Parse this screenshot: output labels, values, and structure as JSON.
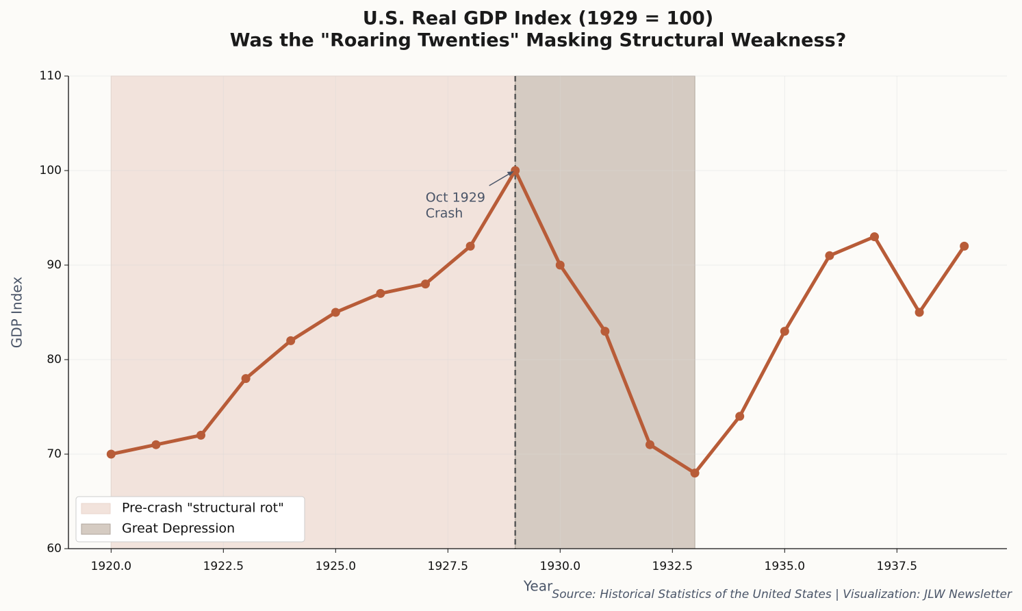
{
  "chart_data": {
    "type": "line",
    "title": "U.S. Real GDP Index (1929 = 100)",
    "subtitle": "Was the \"Roaring Twenties\" Masking Structural Weakness?",
    "x_label": "Year",
    "y_label": "GDP Index",
    "source": "Source: Historical Statistics of the United States | Visualization: JLW Newsletter",
    "x": [
      1920,
      1921,
      1922,
      1923,
      1924,
      1925,
      1926,
      1927,
      1928,
      1929,
      1930,
      1931,
      1932,
      1933,
      1934,
      1935,
      1936,
      1937,
      1938,
      1939
    ],
    "series": [
      {
        "name": "GDP Index",
        "color": "#b85c38",
        "values": [
          70,
          71,
          72,
          78,
          82,
          85,
          87,
          88,
          92,
          100,
          90,
          83,
          71,
          68,
          74,
          83,
          91,
          93,
          85,
          92
        ]
      }
    ],
    "spans": [
      {
        "name": "Pre-crash \"structural rot\"",
        "start": 1920,
        "end": 1929,
        "color": "#f2e3dc"
      },
      {
        "name": "Great Depression",
        "start": 1929,
        "end": 1933,
        "color": "#d5cbc2"
      }
    ],
    "vline": 1929,
    "annotation": {
      "lines": [
        "Oct 1929",
        "Crash"
      ],
      "x": 1929,
      "y": 100
    },
    "xlim": [
      1919.05,
      1939.95
    ],
    "ylim": [
      60,
      110
    ],
    "xticks": [
      {
        "value": 1920,
        "label": "1920.0"
      },
      {
        "value": 1922.5,
        "label": "1922.5"
      },
      {
        "value": 1925,
        "label": "1925.0"
      },
      {
        "value": 1927.5,
        "label": "1927.5"
      },
      {
        "value": 1930,
        "label": "1930.0"
      },
      {
        "value": 1932.5,
        "label": "1932.5"
      },
      {
        "value": 1935,
        "label": "1935.0"
      },
      {
        "value": 1937.5,
        "label": "1937.5"
      }
    ],
    "yticks": [
      60,
      70,
      80,
      90,
      100,
      110
    ],
    "grid": true,
    "legend": "lower left"
  }
}
